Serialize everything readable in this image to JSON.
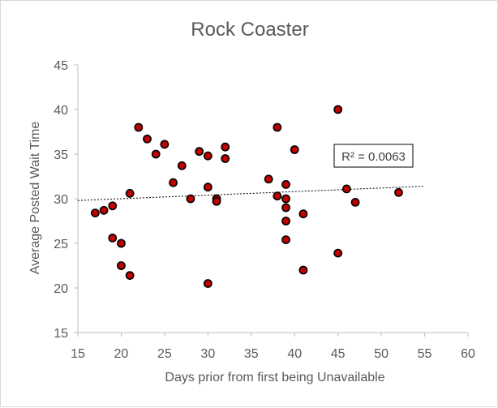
{
  "chart_data": {
    "type": "scatter",
    "title": "Rock Coaster",
    "xlabel": "Days prior from first being Unavailable",
    "ylabel": "Average Posted Wait Time",
    "xlim": [
      15,
      60
    ],
    "ylim": [
      15,
      45
    ],
    "x_ticks": [
      15,
      20,
      25,
      30,
      35,
      40,
      45,
      50,
      55,
      60
    ],
    "y_ticks": [
      15,
      20,
      25,
      30,
      35,
      40,
      45
    ],
    "grid": false,
    "legend": "none",
    "colors": {
      "marker_fill": "#c00000",
      "marker_stroke": "#000000",
      "trendline": "#000000",
      "axis_text": "#595959"
    },
    "points": [
      {
        "x": 17,
        "y": 28.4
      },
      {
        "x": 18,
        "y": 28.7
      },
      {
        "x": 19,
        "y": 29.2
      },
      {
        "x": 19,
        "y": 25.6
      },
      {
        "x": 20,
        "y": 25.0
      },
      {
        "x": 20,
        "y": 22.5
      },
      {
        "x": 21,
        "y": 21.4
      },
      {
        "x": 21,
        "y": 30.6
      },
      {
        "x": 22,
        "y": 38.0
      },
      {
        "x": 23,
        "y": 36.7
      },
      {
        "x": 24,
        "y": 35.0
      },
      {
        "x": 25,
        "y": 36.1
      },
      {
        "x": 26,
        "y": 31.8
      },
      {
        "x": 27,
        "y": 33.7
      },
      {
        "x": 28,
        "y": 30.0
      },
      {
        "x": 29,
        "y": 35.3
      },
      {
        "x": 30,
        "y": 34.8
      },
      {
        "x": 30,
        "y": 31.3
      },
      {
        "x": 30,
        "y": 20.5
      },
      {
        "x": 31,
        "y": 30.0
      },
      {
        "x": 31,
        "y": 29.7
      },
      {
        "x": 32,
        "y": 35.8
      },
      {
        "x": 32,
        "y": 34.5
      },
      {
        "x": 37,
        "y": 32.2
      },
      {
        "x": 38,
        "y": 38.0
      },
      {
        "x": 38,
        "y": 30.3
      },
      {
        "x": 39,
        "y": 31.6
      },
      {
        "x": 39,
        "y": 30.0
      },
      {
        "x": 39,
        "y": 29.0
      },
      {
        "x": 39,
        "y": 27.5
      },
      {
        "x": 39,
        "y": 25.4
      },
      {
        "x": 40,
        "y": 35.5
      },
      {
        "x": 41,
        "y": 28.3
      },
      {
        "x": 41,
        "y": 22.0
      },
      {
        "x": 45,
        "y": 40.0
      },
      {
        "x": 45,
        "y": 23.9
      },
      {
        "x": 46,
        "y": 31.1
      },
      {
        "x": 47,
        "y": 29.6
      },
      {
        "x": 52,
        "y": 30.7
      }
    ],
    "trendline": {
      "type": "linear",
      "x": [
        15,
        55
      ],
      "y": [
        29.8,
        31.4
      ],
      "style": "dotted"
    },
    "annotation": {
      "r2_text": "R² = 0.0063"
    }
  }
}
